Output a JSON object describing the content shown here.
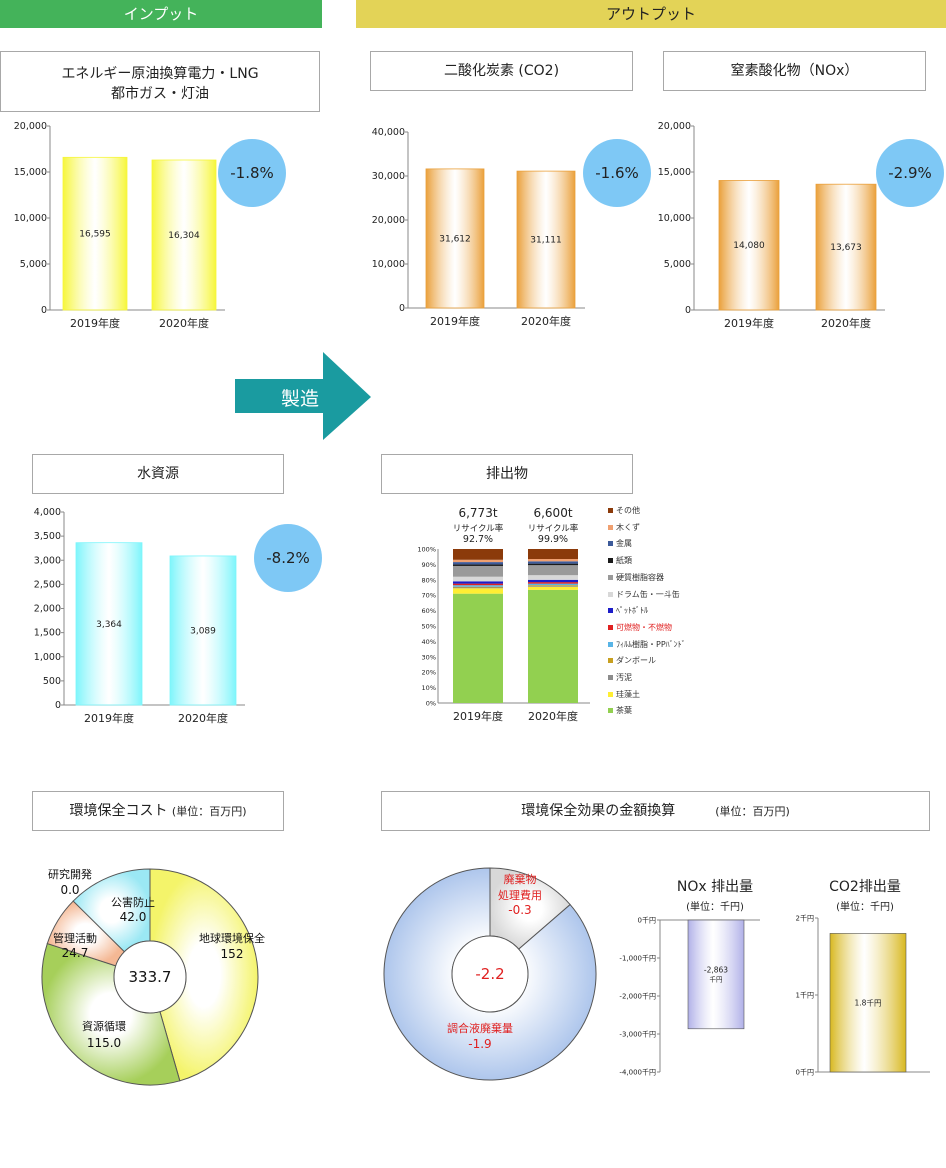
{
  "headers": {
    "input": "インプット",
    "output": "アウトプット"
  },
  "arrow_label": "製造",
  "chart_data": [
    {
      "id": "energy",
      "type": "bar",
      "title": [
        "エネルギー原油換算電力・LNG",
        "都市ガス・灯油"
      ],
      "categories": [
        "2019年度",
        "2020年度"
      ],
      "values": [
        16595,
        16304
      ],
      "value_labels": [
        "16,595",
        "16,304"
      ],
      "ylim": [
        0,
        20000
      ],
      "yticks": [
        "0",
        "5,000",
        "10,000",
        "15,000",
        "20,000"
      ],
      "change": "-1.8%",
      "color": "#f6f63a"
    },
    {
      "id": "co2",
      "type": "bar",
      "title": [
        "二酸化炭素 (CO2)"
      ],
      "categories": [
        "2019年度",
        "2020年度"
      ],
      "values": [
        31612,
        31111
      ],
      "value_labels": [
        "31,612",
        "31,111"
      ],
      "ylim": [
        0,
        40000
      ],
      "yticks": [
        "0",
        "10,000",
        "20,000",
        "30,000",
        "40,000"
      ],
      "change": "-1.6%",
      "color": "#eaa03b"
    },
    {
      "id": "nox",
      "type": "bar",
      "title": [
        "窒素酸化物（NOx）"
      ],
      "categories": [
        "2019年度",
        "2020年度"
      ],
      "values": [
        14080,
        13673
      ],
      "value_labels": [
        "14,080",
        "13,673"
      ],
      "ylim": [
        0,
        20000
      ],
      "yticks": [
        "0",
        "5,000",
        "10,000",
        "15,000",
        "20,000"
      ],
      "change": "-2.9%",
      "color": "#eaa03b"
    },
    {
      "id": "water",
      "type": "bar",
      "title": [
        "水資源"
      ],
      "categories": [
        "2019年度",
        "2020年度"
      ],
      "values": [
        3364,
        3089
      ],
      "value_labels": [
        "3,364",
        "3,089"
      ],
      "ylim": [
        0,
        4000
      ],
      "yticks": [
        "0",
        "500",
        "1,000",
        "1,500",
        "2,000",
        "2,500",
        "3,000",
        "3,500",
        "4,000"
      ],
      "change": "-8.2%",
      "color": "#7df5fb"
    },
    {
      "id": "waste",
      "type": "bar-stacked-percent",
      "title": [
        "排出物"
      ],
      "categories": [
        "2019年度",
        "2020年度"
      ],
      "totals": [
        "6,773t",
        "6,600t"
      ],
      "recycle_label": "リサイクル率",
      "recycle_rates": [
        "92.7%",
        "99.9%"
      ],
      "yticks": [
        "0%",
        "10%",
        "20%",
        "30%",
        "40%",
        "50%",
        "60%",
        "70%",
        "80%",
        "90%",
        "100%"
      ],
      "series": [
        {
          "name": "茶葉",
          "color": "#92d050",
          "values": [
            71.0,
            73.5
          ]
        },
        {
          "name": "珪藻土",
          "color": "#ffee33",
          "values": [
            3.5,
            2.0
          ]
        },
        {
          "name": "汚泥",
          "color": "#8c8c8c",
          "values": [
            0.5,
            0.5
          ]
        },
        {
          "name": "ダンボール",
          "color": "#c8a020",
          "values": [
            0.5,
            0.5
          ]
        },
        {
          "name": "ﾌｨﾙﾑ樹脂・PPﾊﾞﾝﾄﾞ",
          "color": "#58b4e6",
          "values": [
            1.0,
            1.0
          ]
        },
        {
          "name": "可燃物・不燃物",
          "color": "#e02020",
          "values": [
            1.0,
            1.0
          ]
        },
        {
          "name": "ﾍﾟｯﾄﾎﾞﾄﾙ",
          "color": "#1c1cc8",
          "values": [
            1.5,
            1.5
          ]
        },
        {
          "name": "ドラム缶・一斗缶",
          "color": "#d8d8d8",
          "values": [
            3.0,
            3.0
          ]
        },
        {
          "name": "硬質樹脂容器",
          "color": "#9a9a9a",
          "values": [
            7.0,
            6.5
          ]
        },
        {
          "name": "紙類",
          "color": "#1a1a1a",
          "values": [
            1.0,
            1.0
          ]
        },
        {
          "name": "金属",
          "color": "#3c5a9a",
          "values": [
            1.5,
            1.5
          ]
        },
        {
          "name": "木くず",
          "color": "#f0a070",
          "values": [
            1.5,
            1.5
          ]
        },
        {
          "name": "その他",
          "color": "#8b3a0a",
          "values": [
            7.0,
            6.5
          ]
        }
      ]
    },
    {
      "id": "cost",
      "type": "pie",
      "title": "環境保全コスト",
      "unit": "(単位：百万円)",
      "center_label": "333.7",
      "slices": [
        {
          "name": "地球環境保全",
          "value": 152,
          "label": "152",
          "color": "#f4f46a"
        },
        {
          "name": "資源循環",
          "value": 115.0,
          "label": "115.0",
          "color": "#a6cf5a"
        },
        {
          "name": "管理活動",
          "value": 24.7,
          "label": "24.7",
          "color": "#f4b894"
        },
        {
          "name": "研究開発",
          "value": 0.0,
          "label": "0.0",
          "color": "#cccccc"
        },
        {
          "name": "公害防止",
          "value": 42.0,
          "label": "42.0",
          "color": "#9be8f4"
        }
      ]
    },
    {
      "id": "effect",
      "type": "pie",
      "title": "環境保全効果の金額換算",
      "unit": "(単位：百万円)",
      "center_label": "-2.2",
      "slices": [
        {
          "name": "廃棄物処理費用",
          "name_lines": [
            "廃棄物",
            "処理費用"
          ],
          "value": 0.3,
          "label": "-0.3",
          "color": "#d8d8d8"
        },
        {
          "name": "調合液廃棄量",
          "name_lines": [
            "調合液廃棄量"
          ],
          "value": 1.9,
          "label": "-1.9",
          "color": "#aec6ec"
        }
      ]
    },
    {
      "id": "nox_effect",
      "type": "bar",
      "title": "NOx 排出量",
      "unit": "(単位：千円)",
      "values": [
        -2863
      ],
      "value_label": [
        "-2,863",
        "千円"
      ],
      "ylim": [
        -4000,
        0
      ],
      "yticks": [
        "0千円",
        "-1,000千円",
        "-2,000千円",
        "-3,000千円",
        "-4,000千円"
      ],
      "color": "#b0b0e8"
    },
    {
      "id": "co2_effect",
      "type": "bar",
      "title": "CO2排出量",
      "unit": "(単位：千円)",
      "values": [
        1.8
      ],
      "value_label": [
        "1.8千円"
      ],
      "ylim": [
        0,
        2
      ],
      "yticks": [
        "0千円",
        "1千円",
        "2千円"
      ],
      "color": "#d8b820"
    }
  ]
}
